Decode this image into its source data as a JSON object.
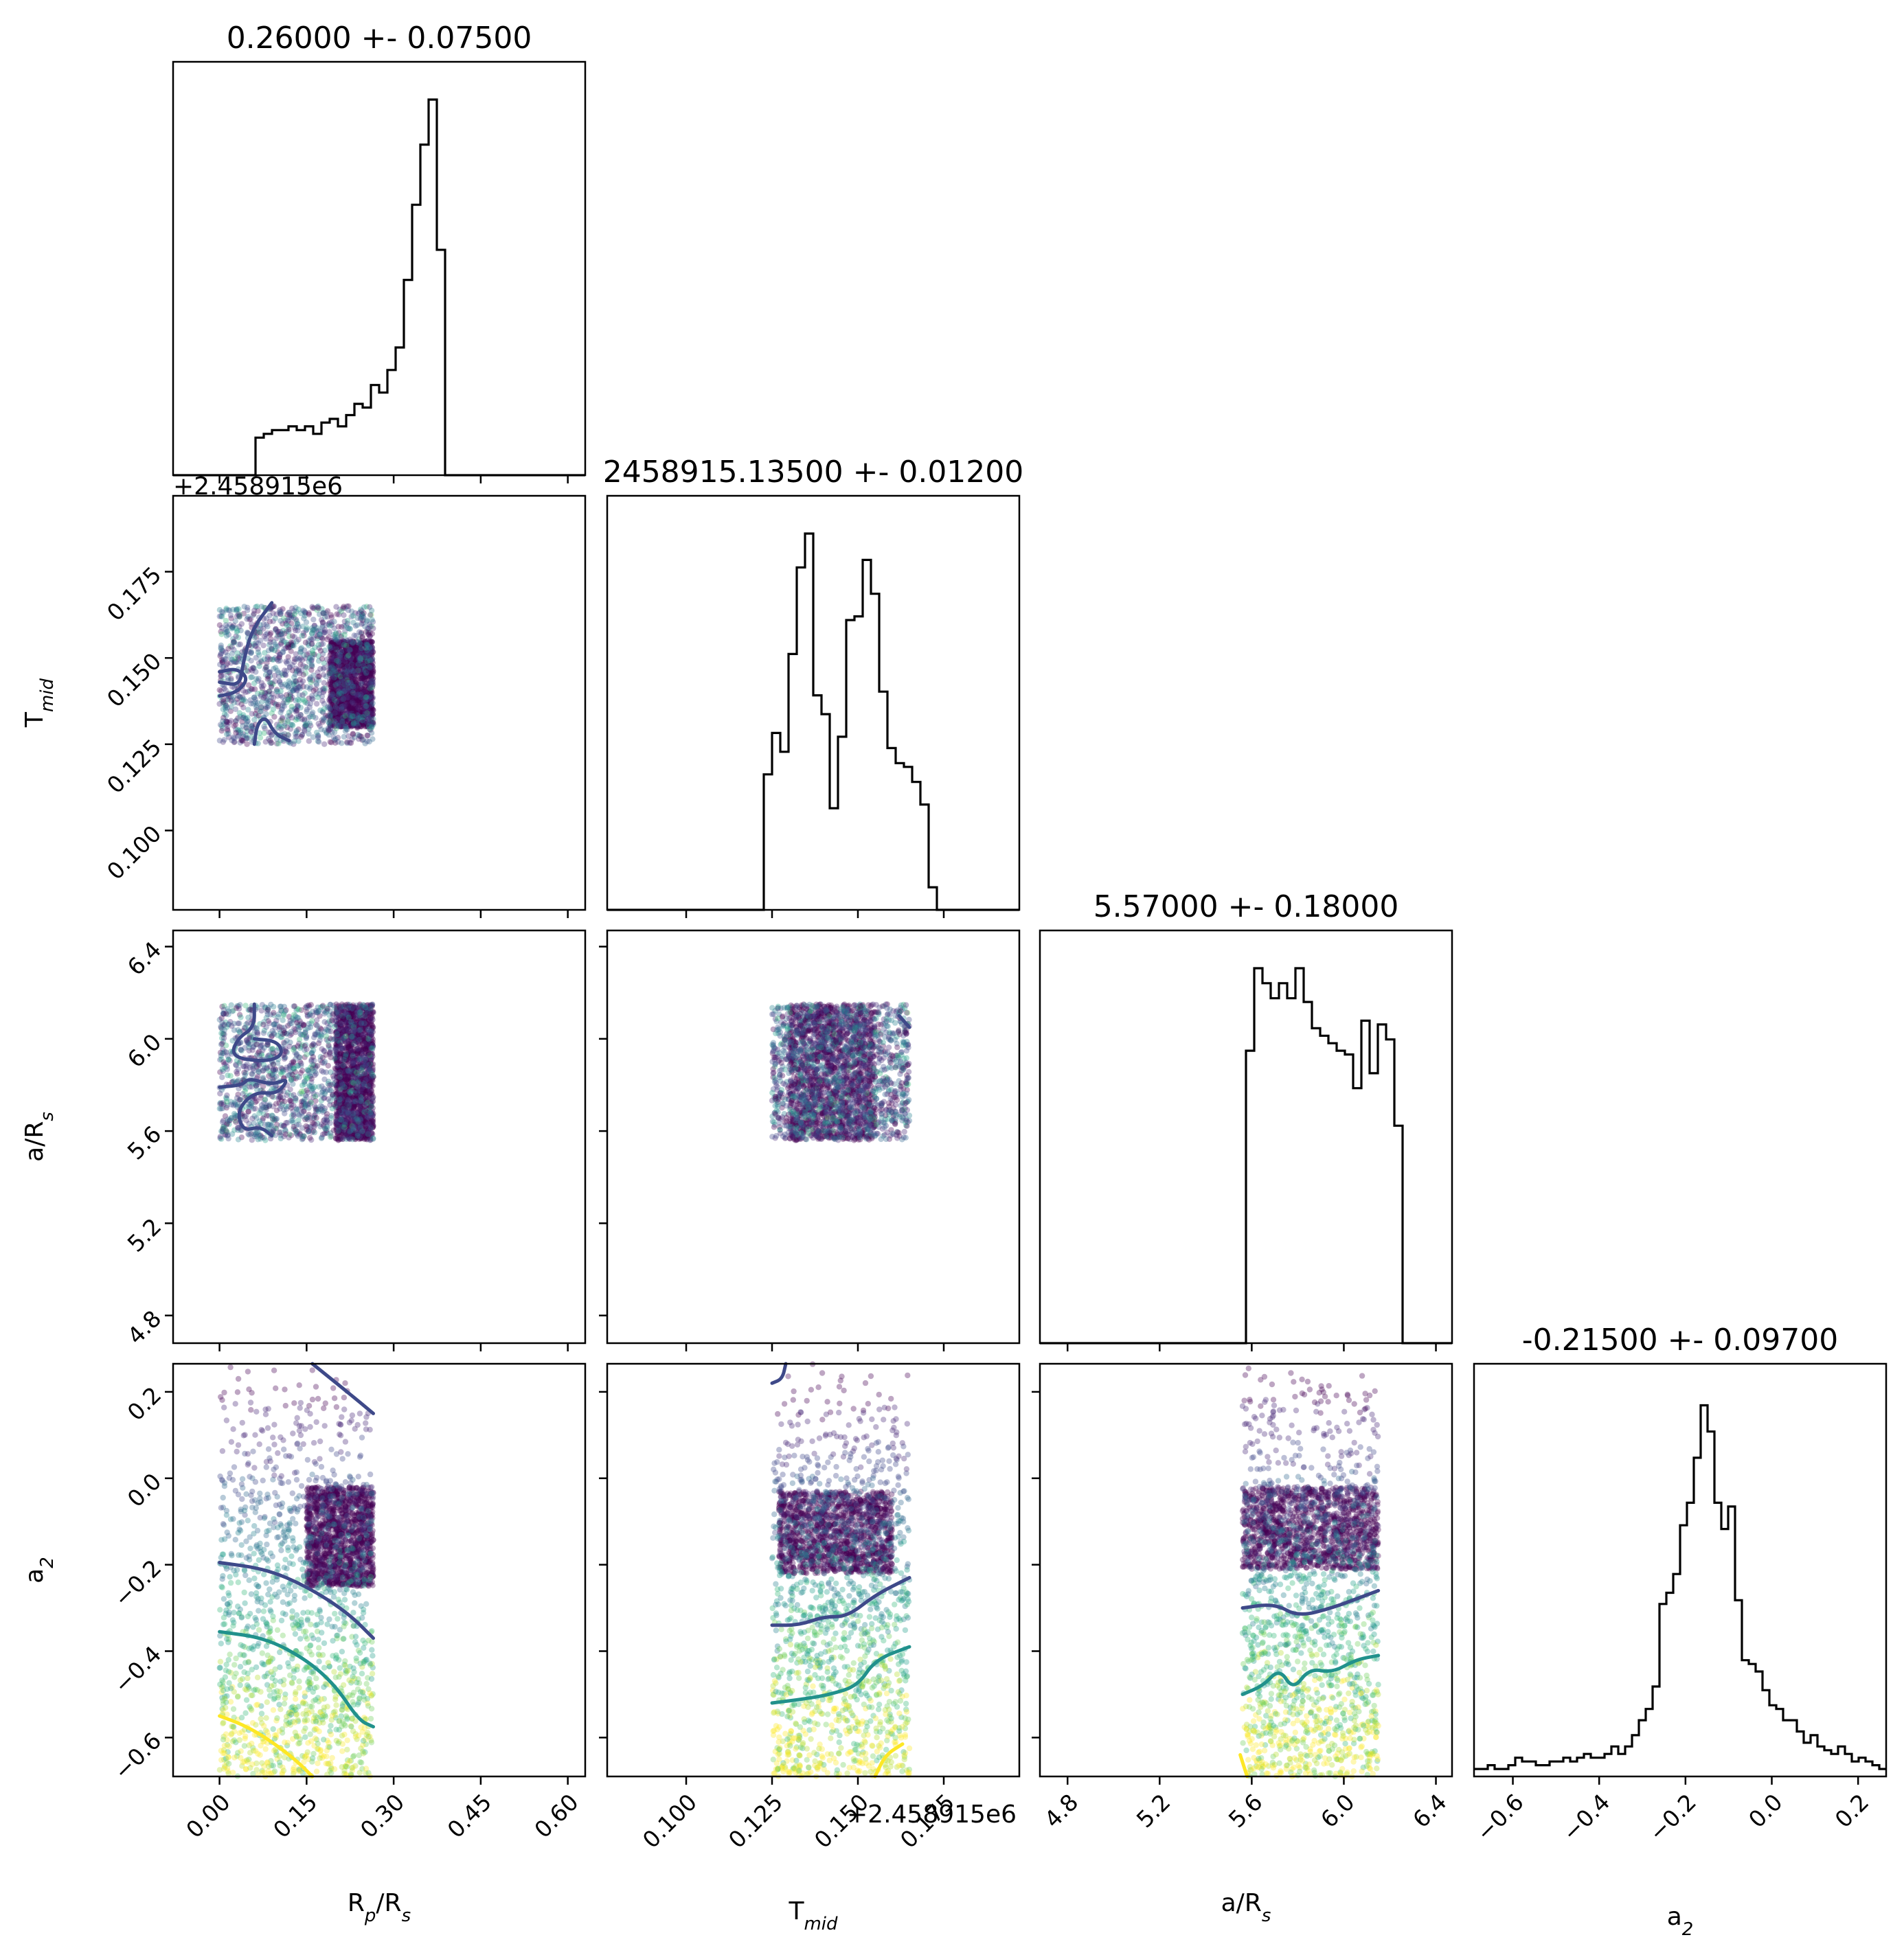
{
  "chart_data": {
    "type": "corner",
    "parameters": [
      {
        "name": "R_p/R_s",
        "axis_label": "R",
        "axis_label_sub": "p",
        "axis_label_tail": "/R",
        "axis_label_sub2": "s",
        "title": "0.26000 +- 0.07500",
        "range": [
          -0.08,
          0.63
        ],
        "ticks": [
          "0.00",
          "0.15",
          "0.30",
          "0.45",
          "0.60"
        ],
        "tick_values": [
          0.0,
          0.15,
          0.3,
          0.45,
          0.6
        ]
      },
      {
        "name": "T_mid",
        "axis_label": "T",
        "axis_label_sub": "mid",
        "title": "2458915.13500 +- 0.01200",
        "offset_text": "+2.458915e6",
        "range": [
          0.077,
          0.197
        ],
        "ticks": [
          "0.100",
          "0.125",
          "0.150",
          "0.175"
        ],
        "tick_values": [
          0.1,
          0.125,
          0.15,
          0.175
        ]
      },
      {
        "name": "a/R_s",
        "axis_label": "a/R",
        "axis_label_sub": "s",
        "title": "5.57000 +- 0.18000",
        "range": [
          4.68,
          6.47
        ],
        "ticks": [
          "4.8",
          "5.2",
          "5.6",
          "6.0",
          "6.4"
        ],
        "tick_values": [
          4.8,
          5.2,
          5.6,
          6.0,
          6.4
        ]
      },
      {
        "name": "a_2",
        "axis_label": "a",
        "axis_label_sub": "2",
        "title": "-0.21500 +- 0.09700",
        "range": [
          -0.69,
          0.265
        ],
        "ticks": [
          "−0.6",
          "−0.4",
          "−0.2",
          "0.0",
          "0.2"
        ],
        "tick_values": [
          -0.6,
          -0.4,
          -0.2,
          0.0,
          0.2
        ]
      }
    ],
    "histograms": [
      {
        "param": 0,
        "edges_range": [
          -0.08,
          0.63
        ],
        "bins": 50,
        "counts": [
          0,
          0,
          0,
          0,
          0,
          0,
          0,
          0,
          0,
          0,
          0.1,
          0.11,
          0.12,
          0.12,
          0.13,
          0.12,
          0.13,
          0.11,
          0.14,
          0.15,
          0.13,
          0.16,
          0.19,
          0.18,
          0.24,
          0.22,
          0.28,
          0.34,
          0.52,
          0.72,
          0.88,
          1.0,
          0.6,
          0,
          0,
          0,
          0,
          0,
          0,
          0,
          0,
          0,
          0,
          0,
          0,
          0,
          0,
          0,
          0,
          0
        ]
      },
      {
        "param": 1,
        "edges_range": [
          0.077,
          0.197
        ],
        "bins": 50,
        "counts": [
          0,
          0,
          0,
          0,
          0,
          0,
          0,
          0,
          0,
          0,
          0,
          0,
          0,
          0,
          0,
          0,
          0,
          0,
          0,
          0.36,
          0.47,
          0.42,
          0.68,
          0.91,
          1.0,
          0.57,
          0.52,
          0.27,
          0.46,
          0.77,
          0.78,
          0.93,
          0.84,
          0.58,
          0.43,
          0.39,
          0.38,
          0.34,
          0.28,
          0.06,
          0,
          0,
          0,
          0,
          0,
          0,
          0,
          0,
          0,
          0
        ]
      },
      {
        "param": 2,
        "edges_range": [
          4.68,
          6.47
        ],
        "bins": 50,
        "counts": [
          0,
          0,
          0,
          0,
          0,
          0,
          0,
          0,
          0,
          0,
          0,
          0,
          0,
          0,
          0,
          0,
          0,
          0,
          0,
          0,
          0,
          0,
          0,
          0,
          0,
          0.78,
          1.0,
          0.96,
          0.92,
          0.96,
          0.92,
          1.0,
          0.91,
          0.84,
          0.82,
          0.8,
          0.78,
          0.77,
          0.68,
          0.86,
          0.72,
          0.85,
          0.81,
          0.58,
          0,
          0,
          0,
          0,
          0,
          0
        ]
      },
      {
        "param": 3,
        "edges_range": [
          -0.69,
          0.265
        ],
        "bins": 60,
        "counts": [
          0.02,
          0.02,
          0.03,
          0.02,
          0.02,
          0.03,
          0.05,
          0.04,
          0.04,
          0.03,
          0.03,
          0.04,
          0.04,
          0.05,
          0.04,
          0.05,
          0.06,
          0.05,
          0.05,
          0.06,
          0.08,
          0.06,
          0.08,
          0.11,
          0.15,
          0.18,
          0.24,
          0.46,
          0.49,
          0.54,
          0.67,
          0.73,
          0.85,
          0.99,
          0.92,
          0.73,
          0.66,
          0.72,
          0.47,
          0.31,
          0.3,
          0.28,
          0.23,
          0.19,
          0.18,
          0.15,
          0.15,
          0.12,
          0.09,
          0.11,
          0.08,
          0.07,
          0.06,
          0.08,
          0.06,
          0.04,
          0.05,
          0.04,
          0.03,
          0.02
        ]
      }
    ],
    "scatter_panels": [
      {
        "x_param": 0,
        "y_param": 1,
        "x_range": [
          0.0,
          0.265
        ],
        "y_range": [
          0.125,
          0.165
        ],
        "dense_region": {
          "x": [
            0.19,
            0.265
          ],
          "y": [
            0.13,
            0.155
          ]
        }
      },
      {
        "x_param": 0,
        "y_param": 2,
        "x_range": [
          0.0,
          0.265
        ],
        "y_range": [
          5.56,
          6.15
        ],
        "dense_region": {
          "x": [
            0.2,
            0.265
          ],
          "y": [
            5.56,
            6.15
          ]
        }
      },
      {
        "x_param": 1,
        "y_param": 2,
        "x_range": [
          0.125,
          0.165
        ],
        "y_range": [
          5.56,
          6.15
        ],
        "dense_region": {
          "x": [
            0.13,
            0.155
          ],
          "y": [
            5.56,
            6.15
          ]
        }
      },
      {
        "x_param": 0,
        "y_param": 3,
        "x_range": [
          0.0,
          0.265
        ],
        "y_range": [
          -0.69,
          0.265
        ],
        "dense_region": {
          "x": [
            0.15,
            0.265
          ],
          "y": [
            -0.25,
            -0.02
          ]
        }
      },
      {
        "x_param": 1,
        "y_param": 3,
        "x_range": [
          0.125,
          0.165
        ],
        "y_range": [
          -0.69,
          0.265
        ],
        "dense_region": {
          "x": [
            0.127,
            0.16
          ],
          "y": [
            -0.22,
            -0.03
          ]
        }
      },
      {
        "x_param": 2,
        "y_param": 3,
        "x_range": [
          5.56,
          6.15
        ],
        "y_range": [
          -0.69,
          0.265
        ],
        "dense_region": {
          "x": [
            5.56,
            6.15
          ],
          "y": [
            -0.21,
            -0.02
          ]
        }
      }
    ],
    "contours": [
      {
        "panel": 0,
        "color": "#3e4989",
        "points": [
          [
            0.09,
            0.166
          ],
          [
            0.055,
            0.158
          ],
          [
            0.04,
            0.148
          ],
          [
            0.035,
            0.142
          ],
          [
            0.0,
            0.143
          ]
        ]
      },
      {
        "panel": 0,
        "color": "#3e4989",
        "points": [
          [
            0.0,
            0.139
          ],
          [
            0.03,
            0.14
          ],
          [
            0.05,
            0.144
          ],
          [
            0.03,
            0.147
          ],
          [
            0.0,
            0.146
          ]
        ]
      },
      {
        "panel": 0,
        "color": "#3e4989",
        "points": [
          [
            0.06,
            0.125
          ],
          [
            0.065,
            0.131
          ],
          [
            0.08,
            0.133
          ],
          [
            0.095,
            0.128
          ],
          [
            0.12,
            0.126
          ]
        ]
      },
      {
        "panel": 1,
        "color": "#3e4989",
        "points": [
          [
            0.06,
            6.15
          ],
          [
            0.06,
            6.05
          ],
          [
            0.03,
            6.0
          ],
          [
            0.02,
            5.92
          ],
          [
            0.08,
            5.9
          ],
          [
            0.11,
            5.93
          ],
          [
            0.1,
            5.99
          ],
          [
            0.06,
            6.0
          ]
        ]
      },
      {
        "panel": 1,
        "color": "#3e4989",
        "points": [
          [
            0.0,
            5.79
          ],
          [
            0.04,
            5.8
          ],
          [
            0.05,
            5.83
          ],
          [
            0.09,
            5.8
          ],
          [
            0.12,
            5.83
          ],
          [
            0.1,
            5.76
          ],
          [
            0.06,
            5.77
          ],
          [
            0.03,
            5.69
          ],
          [
            0.04,
            5.6
          ],
          [
            0.07,
            5.62
          ],
          [
            0.09,
            5.58
          ]
        ]
      },
      {
        "panel": 2,
        "color": "#3e4989",
        "points": [
          [
            0.165,
            6.05
          ],
          [
            0.162,
            6.1
          ]
        ]
      },
      {
        "panel": 3,
        "color": "#3e4989",
        "points": [
          [
            0.16,
            0.265
          ],
          [
            0.22,
            0.2
          ],
          [
            0.265,
            0.15
          ]
        ]
      },
      {
        "panel": 3,
        "color": "#3e4989",
        "points": [
          [
            0.0,
            -0.195
          ],
          [
            0.08,
            -0.21
          ],
          [
            0.15,
            -0.25
          ],
          [
            0.22,
            -0.31
          ],
          [
            0.265,
            -0.37
          ]
        ]
      },
      {
        "panel": 3,
        "color": "#21918c",
        "points": [
          [
            0.0,
            -0.355
          ],
          [
            0.08,
            -0.37
          ],
          [
            0.15,
            -0.42
          ],
          [
            0.2,
            -0.48
          ],
          [
            0.24,
            -0.56
          ],
          [
            0.265,
            -0.575
          ]
        ]
      },
      {
        "panel": 3,
        "color": "#fde725",
        "points": [
          [
            0.0,
            -0.55
          ],
          [
            0.04,
            -0.57
          ],
          [
            0.08,
            -0.6
          ],
          [
            0.13,
            -0.65
          ],
          [
            0.16,
            -0.69
          ]
        ]
      },
      {
        "panel": 4,
        "color": "#3e4989",
        "points": [
          [
            0.125,
            0.22
          ],
          [
            0.128,
            0.23
          ],
          [
            0.129,
            0.265
          ]
        ]
      },
      {
        "panel": 4,
        "color": "#3e4989",
        "points": [
          [
            0.125,
            -0.34
          ],
          [
            0.133,
            -0.34
          ],
          [
            0.14,
            -0.32
          ],
          [
            0.147,
            -0.32
          ],
          [
            0.155,
            -0.27
          ],
          [
            0.165,
            -0.23
          ]
        ]
      },
      {
        "panel": 4,
        "color": "#21918c",
        "points": [
          [
            0.125,
            -0.52
          ],
          [
            0.135,
            -0.51
          ],
          [
            0.142,
            -0.5
          ],
          [
            0.15,
            -0.48
          ],
          [
            0.155,
            -0.42
          ],
          [
            0.165,
            -0.39
          ]
        ]
      },
      {
        "panel": 4,
        "color": "#fde725",
        "points": [
          [
            0.155,
            -0.69
          ],
          [
            0.158,
            -0.64
          ],
          [
            0.163,
            -0.615
          ]
        ]
      },
      {
        "panel": 5,
        "color": "#3e4989",
        "points": [
          [
            5.56,
            -0.3
          ],
          [
            5.7,
            -0.29
          ],
          [
            5.8,
            -0.32
          ],
          [
            5.95,
            -0.3
          ],
          [
            6.1,
            -0.27
          ],
          [
            6.15,
            -0.26
          ]
        ]
      },
      {
        "panel": 5,
        "color": "#21918c",
        "points": [
          [
            5.56,
            -0.5
          ],
          [
            5.65,
            -0.48
          ],
          [
            5.72,
            -0.44
          ],
          [
            5.78,
            -0.49
          ],
          [
            5.85,
            -0.44
          ],
          [
            5.95,
            -0.45
          ],
          [
            6.05,
            -0.42
          ],
          [
            6.15,
            -0.41
          ]
        ]
      },
      {
        "panel": 5,
        "color": "#fde725",
        "points": [
          [
            5.55,
            -0.64
          ],
          [
            5.58,
            -0.69
          ]
        ]
      }
    ],
    "colors": {
      "scatter_dense": "#440154",
      "contour_inner": "#3e4989",
      "contour_mid": "#21918c",
      "contour_outer": "#fde725",
      "histogram_line": "#000000"
    }
  }
}
